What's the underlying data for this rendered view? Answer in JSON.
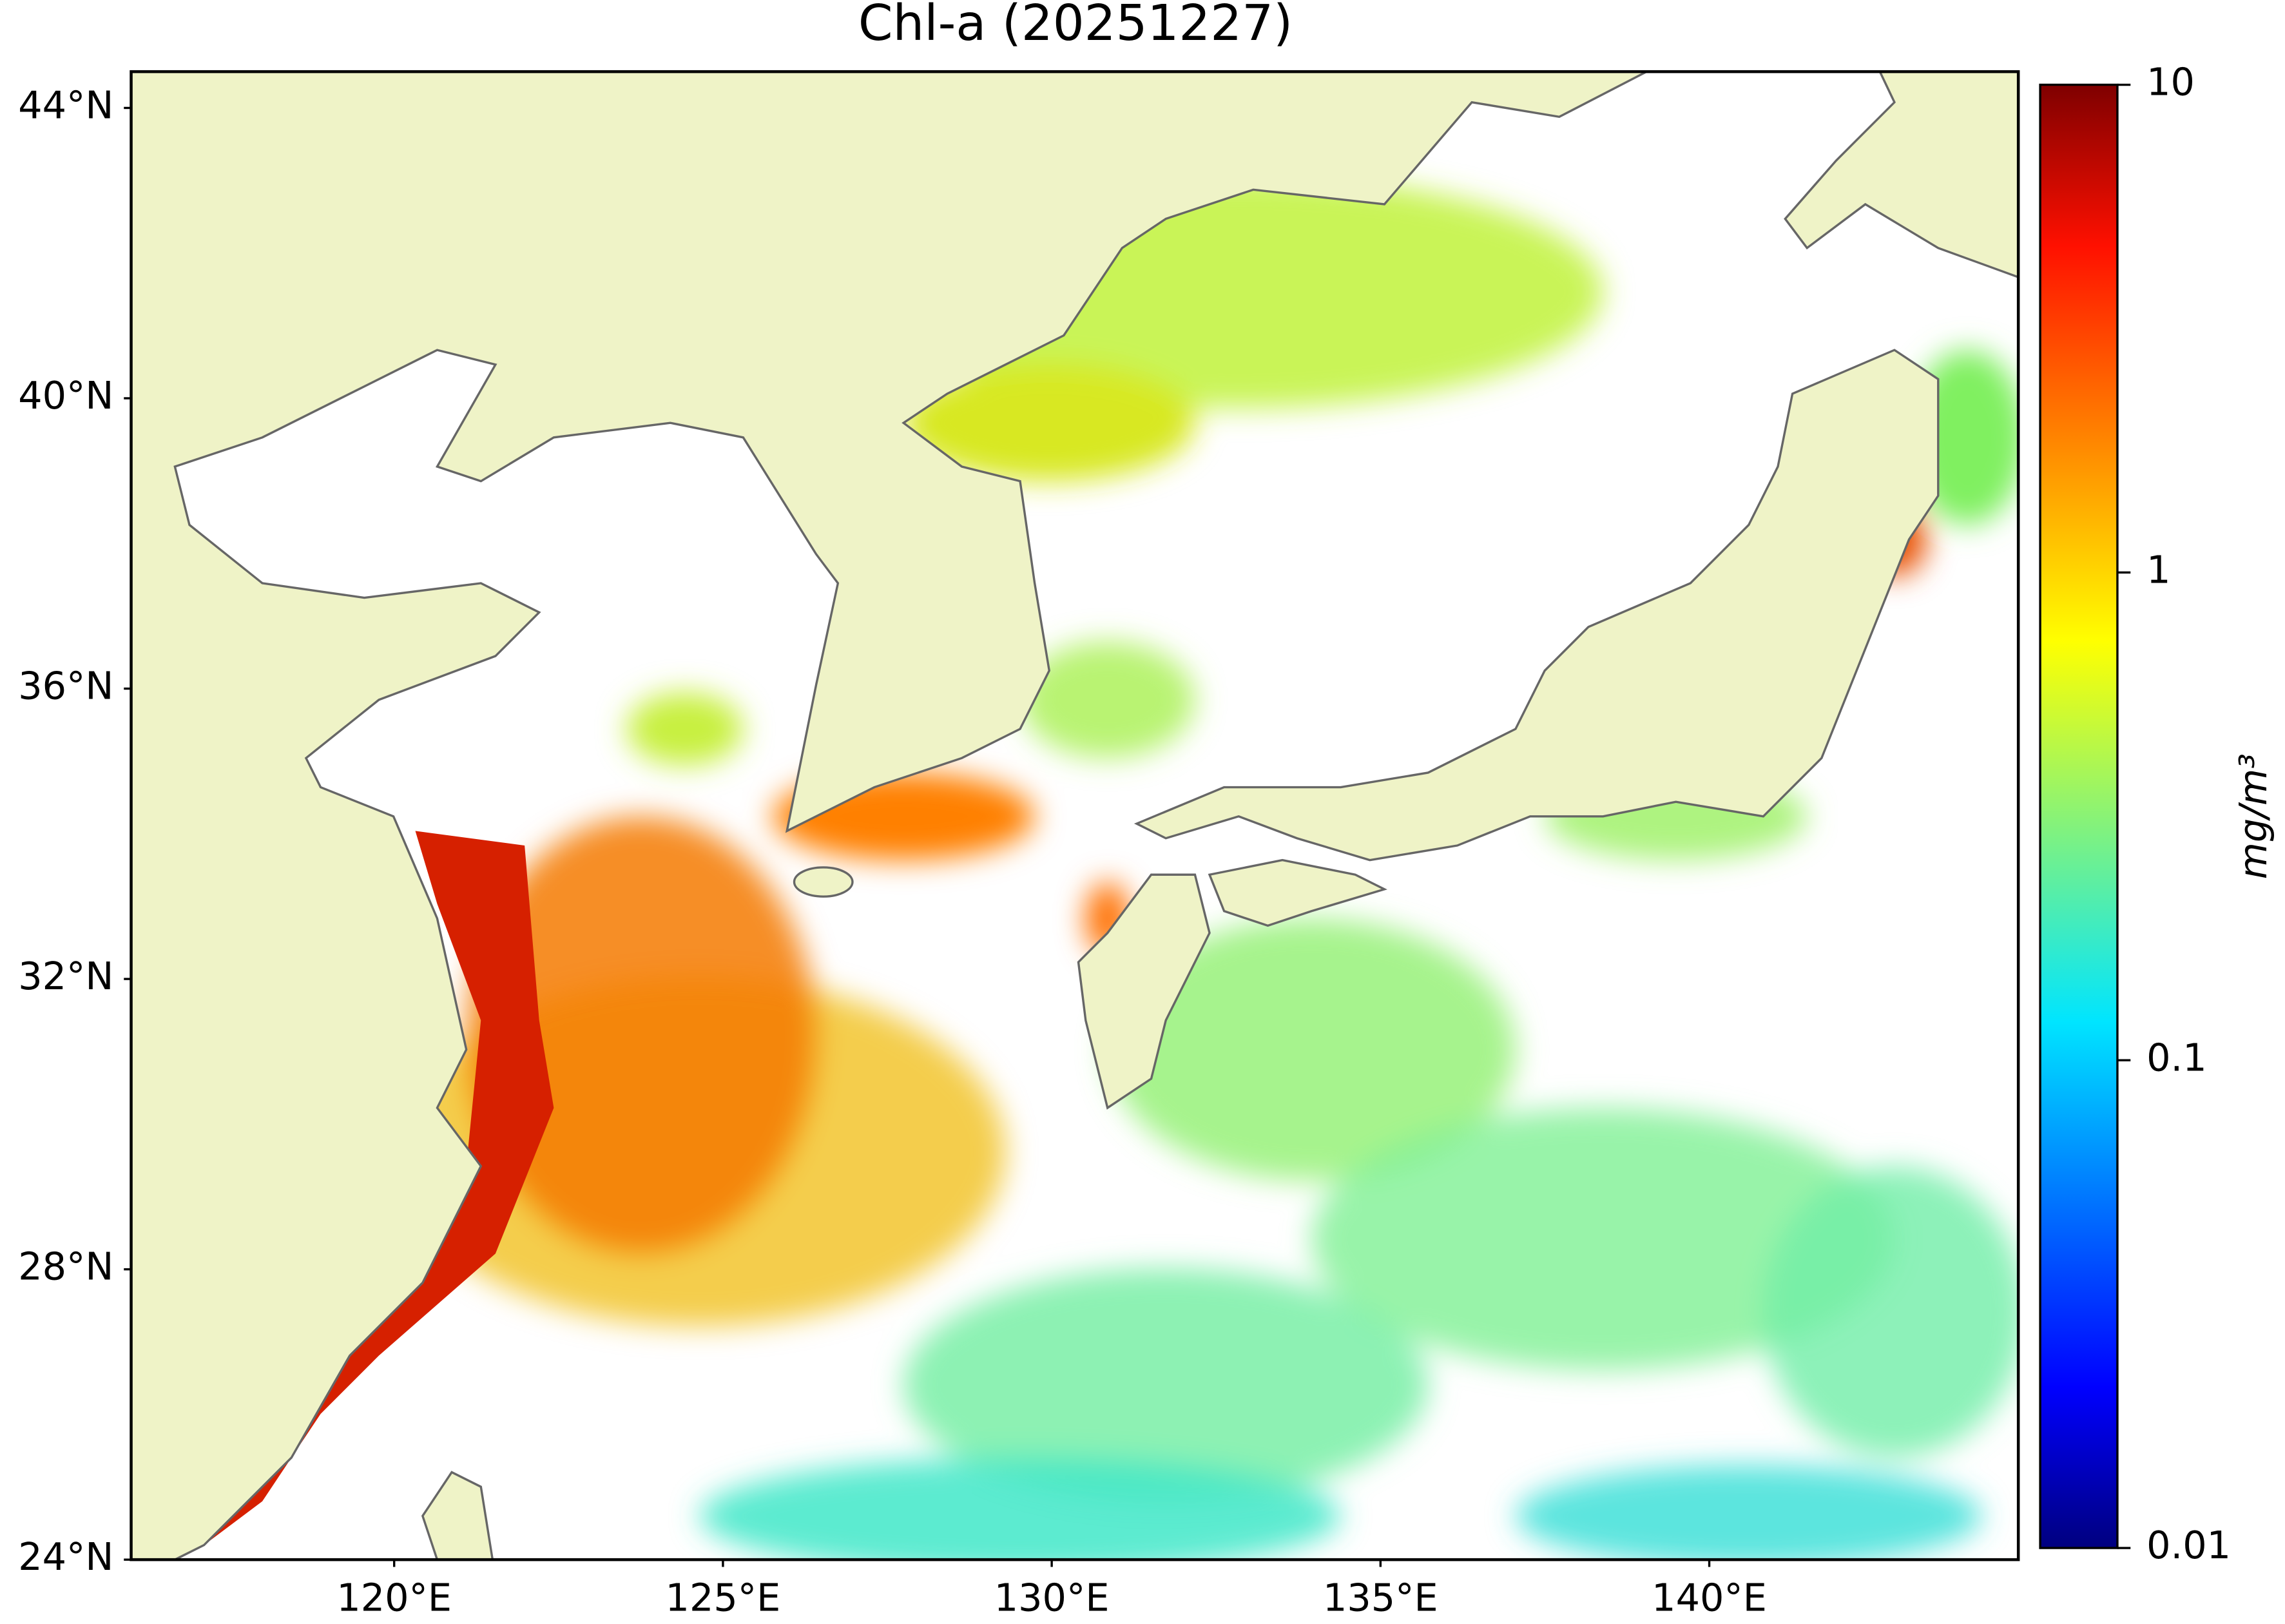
{
  "title": "Chl-a (20251227)",
  "map": {
    "lat_lim": [
      24,
      44.5
    ],
    "lon_lim": [
      116,
      144.7
    ],
    "lat_ticks": [
      {
        "value": 24,
        "label": "24°N"
      },
      {
        "value": 28,
        "label": "28°N"
      },
      {
        "value": 32,
        "label": "32°N"
      },
      {
        "value": 36,
        "label": "36°N"
      },
      {
        "value": 40,
        "label": "40°N"
      },
      {
        "value": 44,
        "label": "44°N"
      }
    ],
    "lon_ticks": [
      {
        "value": 120,
        "label": "120°E"
      },
      {
        "value": 125,
        "label": "125°E"
      },
      {
        "value": 130,
        "label": "130°E"
      },
      {
        "value": 135,
        "label": "135°E"
      },
      {
        "value": 140,
        "label": "140°E"
      }
    ]
  },
  "colorbar": {
    "scale": "log",
    "lim": [
      0.01,
      10
    ],
    "ticks": [
      0.01,
      0.1,
      1,
      10
    ],
    "label": "mg/m³"
  }
}
